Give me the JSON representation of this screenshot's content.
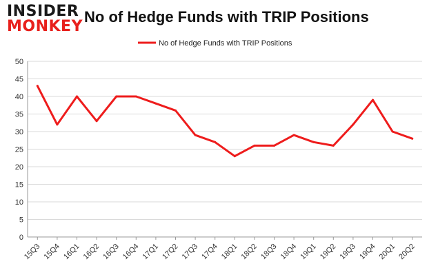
{
  "brand": {
    "line1": "INSIDER",
    "line2": "MONKEY"
  },
  "colors": {
    "series": "#ee1c1c",
    "grid": "#d9d9d9",
    "axis": "#999999",
    "brand_red": "#e8201c"
  },
  "chart_data": {
    "type": "line",
    "title": "No of Hedge Funds with TRIP Positions",
    "xlabel": "",
    "ylabel": "",
    "categories": [
      "15Q3",
      "15Q4",
      "16Q1",
      "16Q2",
      "16Q3",
      "16Q4",
      "17Q1",
      "17Q2",
      "17Q3",
      "17Q4",
      "18Q1",
      "18Q2",
      "18Q3",
      "18Q4",
      "19Q1",
      "19Q2",
      "19Q3",
      "19Q4",
      "20Q1",
      "20Q2"
    ],
    "series": [
      {
        "name": "No of Hedge Funds with TRIP Positions",
        "values": [
          43,
          32,
          40,
          33,
          40,
          40,
          38,
          36,
          29,
          27,
          23,
          26,
          26,
          29,
          27,
          26,
          32,
          39,
          30,
          28
        ]
      }
    ],
    "ylim": [
      0,
      50
    ],
    "yticks": [
      0,
      5,
      10,
      15,
      20,
      25,
      30,
      35,
      40,
      45,
      50
    ],
    "grid": true,
    "legend": "top-center"
  }
}
